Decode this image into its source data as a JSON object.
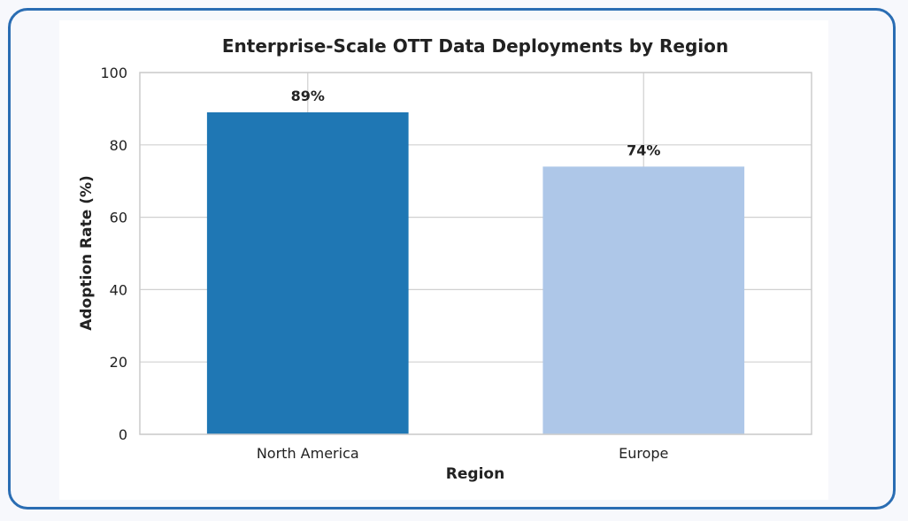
{
  "chart_data": {
    "type": "bar",
    "title": "Enterprise-Scale OTT Data Deployments by Region",
    "xlabel": "Region",
    "ylabel": "Adoption Rate (%)",
    "categories": [
      "North America",
      "Europe"
    ],
    "values": [
      89,
      74
    ],
    "value_labels": [
      "89%",
      "74%"
    ],
    "bar_colors": [
      "#1f77b4",
      "#aec7e8"
    ],
    "ylim": [
      0,
      100
    ],
    "yticks": [
      0,
      20,
      40,
      60,
      80,
      100
    ],
    "ytick_labels": [
      "0",
      "20",
      "40",
      "60",
      "80",
      "100"
    ],
    "grid": true
  },
  "colors": {
    "frame_border": "#2a6db3",
    "grid": "#d0d0d0"
  }
}
